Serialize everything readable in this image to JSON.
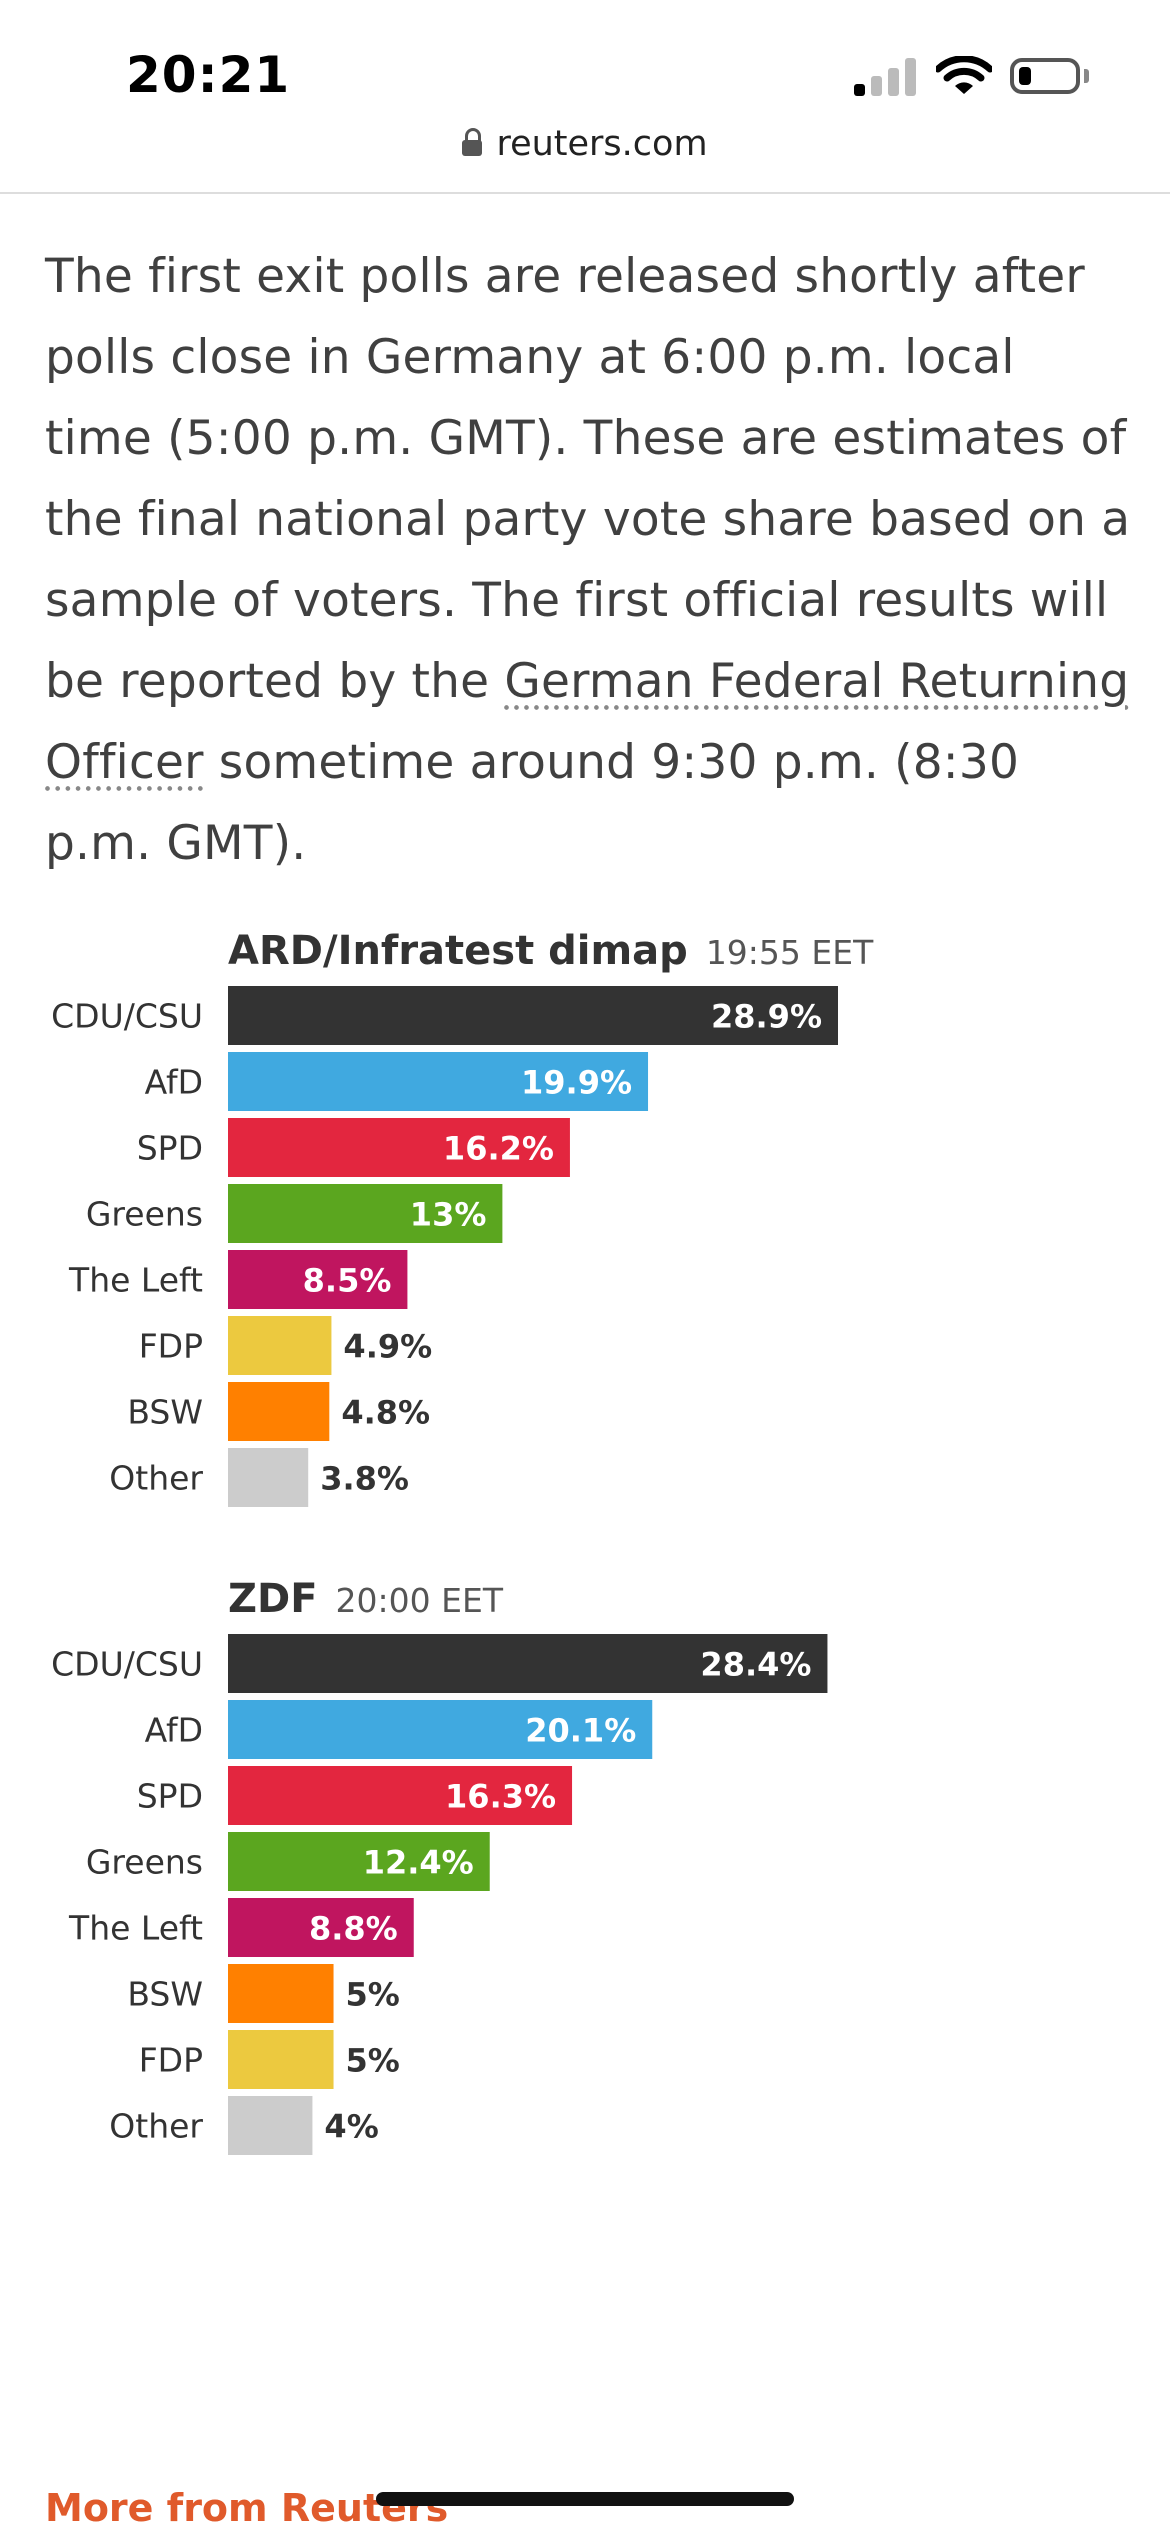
{
  "status_bar": {
    "time": "20:21",
    "url": "reuters.com"
  },
  "article": {
    "intro_before": "The first exit polls are released shortly after polls close in Germany at 6:00 p.m. local time (5:00 p.m. GMT). These are estimates of the final national party vote share based on a sample of voters. The first official results will be reported by the ",
    "intro_link": "German Federal Returning Officer",
    "intro_after": " sometime around 9:30 p.m. (8:30 p.m. GMT)."
  },
  "chart_data": [
    {
      "type": "bar",
      "orientation": "horizontal",
      "title": "ARD/Infratest dimap",
      "subtitle": "19:55 EET",
      "categories": [
        "CDU/CSU",
        "AfD",
        "SPD",
        "Greens",
        "The Left",
        "FDP",
        "BSW",
        "Other"
      ],
      "values": [
        28.9,
        19.9,
        16.2,
        13,
        8.5,
        4.9,
        4.8,
        3.8
      ],
      "value_labels": [
        "28.9%",
        "19.9%",
        "16.2%",
        "13%",
        "8.5%",
        "4.9%",
        "4.8%",
        "3.8%"
      ],
      "colors": [
        "#333333",
        "#40a9e0",
        "#e3263f",
        "#5ba61f",
        "#c0155f",
        "#ecc93f",
        "#ff8000",
        "#cccccc"
      ],
      "xlim": [
        0,
        30
      ],
      "grid": false
    },
    {
      "type": "bar",
      "orientation": "horizontal",
      "title": "ZDF",
      "subtitle": "20:00 EET",
      "categories": [
        "CDU/CSU",
        "AfD",
        "SPD",
        "Greens",
        "The Left",
        "BSW",
        "FDP",
        "Other"
      ],
      "values": [
        28.4,
        20.1,
        16.3,
        12.4,
        8.8,
        5,
        5,
        4
      ],
      "value_labels": [
        "28.4%",
        "20.1%",
        "16.3%",
        "12.4%",
        "8.8%",
        "5%",
        "5%",
        "4%"
      ],
      "colors": [
        "#333333",
        "#40a9e0",
        "#e3263f",
        "#5ba61f",
        "#c0155f",
        "#ff8000",
        "#ecc93f",
        "#cccccc"
      ],
      "xlim": [
        0,
        30
      ],
      "grid": false
    }
  ],
  "footer": {
    "more_link": "More from Reuters"
  }
}
